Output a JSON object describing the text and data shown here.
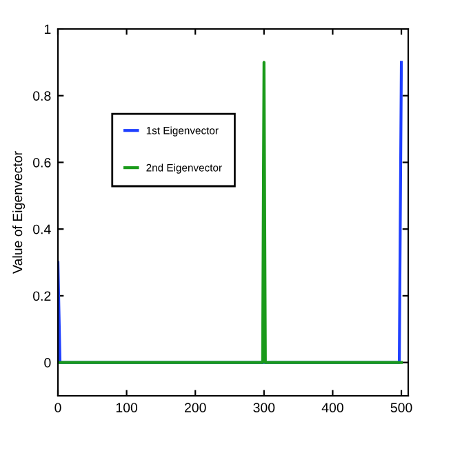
{
  "chart_data": {
    "type": "line",
    "ylabel": "Value of Eigenvector",
    "xlim": [
      0,
      510
    ],
    "ylim": [
      -0.1,
      1
    ],
    "xticks": [
      0,
      100,
      200,
      300,
      400,
      500
    ],
    "yticks": [
      0,
      0.2,
      0.4,
      0.6,
      0.8,
      1
    ],
    "grid": false,
    "legend": "left",
    "marker": "none",
    "line_style": "solid",
    "series": [
      {
        "name": "1st Eigenvector",
        "color": "#1f3fff",
        "x": [
          0,
          3,
          497,
          500
        ],
        "values": [
          0.3,
          0,
          0,
          0.9
        ]
      },
      {
        "name": "2nd Eigenvector",
        "color": "#1a9a1a",
        "x": [
          0,
          298,
          300,
          302,
          500
        ],
        "values": [
          0,
          0,
          0.9,
          0,
          0
        ]
      }
    ]
  }
}
